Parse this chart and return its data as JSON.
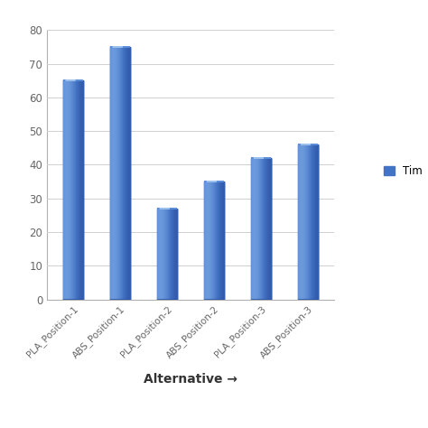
{
  "categories": [
    "PLA_Position-1",
    "ABS_Position-1",
    "PLA_Position-2",
    "ABS_Position-2",
    "PLA_Position-3",
    "ABS_Position-3"
  ],
  "values": [
    65,
    75,
    27,
    35,
    42,
    46
  ],
  "bar_color_main": "#4472C4",
  "bar_color_light": "#7BAAE8",
  "bar_color_dark": "#2952A3",
  "bar_color_top_highlight": "#A8C8F0",
  "bar_color_top_main": "#5B8DD9",
  "xlabel": "Alternative →",
  "ylim": [
    0,
    80
  ],
  "yticks": [
    0,
    10,
    20,
    30,
    40,
    50,
    60,
    70,
    80
  ],
  "legend_label": "Tim",
  "background_color": "#ffffff",
  "bar_width": 0.42
}
